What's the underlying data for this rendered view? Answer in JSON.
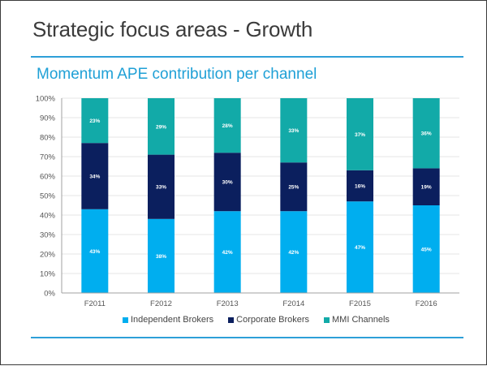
{
  "slide": {
    "title": "Strategic focus areas - Growth"
  },
  "chart_data": {
    "type": "bar",
    "stacked": true,
    "title": "Momentum APE contribution per channel",
    "xlabel": "",
    "ylabel": "",
    "ylim": [
      0,
      100
    ],
    "yticks": [
      "0%",
      "10%",
      "20%",
      "30%",
      "40%",
      "50%",
      "60%",
      "70%",
      "80%",
      "90%",
      "100%"
    ],
    "grid": true,
    "legend_position": "bottom",
    "categories": [
      "F2011",
      "F2012",
      "F2013",
      "F2014",
      "F2015",
      "F2016"
    ],
    "series": [
      {
        "name": "Independent Brokers",
        "color": "#00aeef",
        "values": [
          43,
          38,
          42,
          42,
          47,
          45
        ],
        "labels": [
          "43%",
          "38%",
          "42%",
          "42%",
          "47%",
          "45%"
        ]
      },
      {
        "name": "Corporate Brokers",
        "color": "#0b1f5e",
        "values": [
          34,
          33,
          30,
          25,
          16,
          19
        ],
        "labels": [
          "34%",
          "33%",
          "30%",
          "25%",
          "16%",
          "19%"
        ]
      },
      {
        "name": "MMI Channels",
        "color": "#12aaa8",
        "values": [
          23,
          29,
          28,
          33,
          37,
          36
        ],
        "labels": [
          "23%",
          "29%",
          "28%",
          "33%",
          "37%",
          "36%"
        ]
      }
    ]
  },
  "colors": {
    "accent_rule": "#2e9fd8",
    "subtitle": "#1fa0d6",
    "title": "#3b3b3b"
  }
}
